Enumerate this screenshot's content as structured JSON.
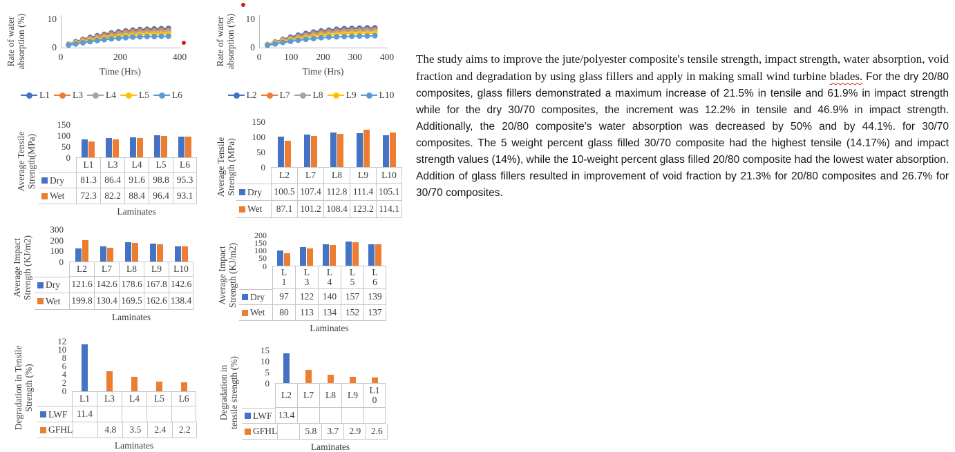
{
  "colors": {
    "blue": "#4472C4",
    "orange": "#ED7D31",
    "gray": "#A5A5A5",
    "yellow": "#FFC000",
    "light_blue": "#5B9BD5",
    "red_dot": "#C9231F",
    "table_border": "#C6C6C6",
    "chart_text": "#3B3B3B"
  },
  "stray_marks": [
    {
      "name": "red-dot-right-of-first-line-chart"
    },
    {
      "name": "red-dot-above-second-line-chart"
    }
  ],
  "paragraph": {
    "serif_lead": "The study aims to improve the jute/polyester composite's tensile strength, impact strength, water absorption, void fraction and degradation by using glass fillers and apply in making small wind turbine ",
    "misspelled_word": "blades.",
    "sans_rest": " For the dry 20/80 composites, glass fillers demonstrated a maximum increase of 21.5% in tensile and 61.9% in impact strength while for the dry 30/70 composites, the increment was 12.2% in tensile and 46.9% in impact strength. Additionally, the 20/80 composite’s water absorption was decreased by 50% and by 44.1%. for 30/70 composites. The 5 weight percent glass filled 30/70 composite had the highest tensile (14.17%) and impact strength values (14%), while the 10-weight percent glass filled 20/80 composite had the lowest water absorption. Addition of glass fillers resulted in improvement of void fraction by 21.3% for 20/80 composites and 26.7% for 30/70 composites."
  },
  "chart_data": [
    {
      "id": "water-absorption-L1-set",
      "type": "line",
      "ylabel": "Rate of water absorption (%)",
      "ylabel_display": "Rate of water\nabsorption (%)",
      "xlabel": "Time (Hrs)",
      "ylim": [
        0,
        10
      ],
      "yticks": [
        0,
        10
      ],
      "xlim": [
        0,
        400
      ],
      "xticks": [
        0,
        200,
        400
      ],
      "legend_position": "bottom",
      "x": [
        24,
        48,
        72,
        96,
        120,
        144,
        168,
        192,
        216,
        240,
        264,
        288,
        312,
        336,
        360
      ],
      "series": [
        {
          "name": "L1",
          "color": "#4472C4",
          "values": [
            1.2,
            2.1,
            2.9,
            3.6,
            4.2,
            4.7,
            5.2,
            5.6,
            5.9,
            6.2,
            6.4,
            6.5,
            6.6,
            6.7,
            6.8
          ]
        },
        {
          "name": "L3",
          "color": "#ED7D31",
          "values": [
            1.1,
            1.9,
            2.7,
            3.3,
            3.9,
            4.4,
            4.8,
            5.2,
            5.5,
            5.7,
            5.9,
            6.0,
            6.1,
            6.2,
            6.2
          ]
        },
        {
          "name": "L4",
          "color": "#A5A5A5",
          "values": [
            1.1,
            1.8,
            2.4,
            3.0,
            3.5,
            3.9,
            4.3,
            4.6,
            4.9,
            5.1,
            5.3,
            5.4,
            5.5,
            5.5,
            5.6
          ]
        },
        {
          "name": "L5",
          "color": "#FFC000",
          "values": [
            1.0,
            1.6,
            2.1,
            2.6,
            3.0,
            3.4,
            3.7,
            4.0,
            4.2,
            4.4,
            4.6,
            4.7,
            4.8,
            4.8,
            4.9
          ]
        },
        {
          "name": "L6",
          "color": "#5B9BD5",
          "values": [
            0.9,
            1.3,
            1.7,
            2.1,
            2.5,
            2.8,
            3.1,
            3.3,
            3.5,
            3.7,
            3.8,
            3.9,
            3.9,
            4.0,
            4.0
          ]
        }
      ]
    },
    {
      "id": "water-absorption-L2-set",
      "type": "line",
      "ylabel": "Rate of water absorption (%)",
      "ylabel_display": "Rate of water\nabsorption (%)",
      "xlabel": "Time (Hrs)",
      "ylim": [
        0,
        10
      ],
      "yticks": [
        0,
        10
      ],
      "xlim": [
        0,
        400
      ],
      "xticks": [
        0,
        100,
        200,
        300,
        400
      ],
      "legend_position": "bottom",
      "x": [
        24,
        48,
        72,
        96,
        120,
        144,
        168,
        192,
        216,
        240,
        264,
        288,
        312,
        336,
        360
      ],
      "series": [
        {
          "name": "L2",
          "color": "#4472C4",
          "values": [
            1.1,
            2.0,
            2.9,
            3.7,
            4.4,
            5.0,
            5.5,
            5.9,
            6.2,
            6.5,
            6.7,
            6.8,
            6.9,
            7.0,
            7.0
          ]
        },
        {
          "name": "L7",
          "color": "#ED7D31",
          "values": [
            1.0,
            1.9,
            2.7,
            3.4,
            4.0,
            4.5,
            5.0,
            5.4,
            5.7,
            5.9,
            6.1,
            6.2,
            6.3,
            6.4,
            6.4
          ]
        },
        {
          "name": "L8",
          "color": "#A5A5A5",
          "values": [
            1.0,
            1.8,
            2.5,
            3.1,
            3.7,
            4.2,
            4.6,
            4.9,
            5.2,
            5.4,
            5.6,
            5.7,
            5.8,
            5.9,
            5.9
          ]
        },
        {
          "name": "L9",
          "color": "#FFC000",
          "values": [
            1.0,
            1.6,
            2.2,
            2.7,
            3.2,
            3.6,
            4.0,
            4.3,
            4.5,
            4.7,
            4.9,
            5.0,
            5.1,
            5.1,
            5.2
          ]
        },
        {
          "name": "L10",
          "color": "#5B9BD5",
          "values": [
            0.8,
            1.3,
            1.8,
            2.2,
            2.6,
            2.9,
            3.2,
            3.5,
            3.7,
            3.8,
            3.9,
            4.0,
            4.1,
            4.1,
            4.2
          ]
        }
      ]
    },
    {
      "id": "avg-tensile-L1-set",
      "type": "bar",
      "ylabel": "Average Tensile Strength(MPa)",
      "ylabel_display": "Average Tensile\nStrength(MPa)",
      "xlabel": "Laminates",
      "ylim": [
        0,
        150
      ],
      "yticks": [
        0,
        50,
        100,
        150
      ],
      "categories": [
        "L1",
        "L3",
        "L4",
        "L5",
        "L6"
      ],
      "data_table": true,
      "legend_position": "table-left",
      "series": [
        {
          "name": "Dry",
          "color": "#4472C4",
          "values": [
            81.3,
            86.4,
            91.6,
            98.8,
            95.3
          ]
        },
        {
          "name": "Wet",
          "color": "#ED7D31",
          "values": [
            72.3,
            82.2,
            88.4,
            96.4,
            93.1
          ]
        }
      ]
    },
    {
      "id": "avg-tensile-L2-set",
      "type": "bar",
      "ylabel": "Average Tensile Strength (MPa)",
      "ylabel_display": "Average Tensile\nStrength (MPa)",
      "xlabel": "",
      "ylim": [
        0,
        150
      ],
      "yticks": [
        0,
        50,
        100,
        150
      ],
      "categories": [
        "L2",
        "L7",
        "L8",
        "L9",
        "L10"
      ],
      "data_table": true,
      "legend_position": "table-left",
      "series": [
        {
          "name": "Dry",
          "color": "#4472C4",
          "values": [
            100.5,
            107.4,
            112.8,
            111.4,
            105.1
          ]
        },
        {
          "name": "Wet",
          "color": "#ED7D31",
          "values": [
            87.1,
            101.2,
            108.4,
            123.2,
            114.1
          ]
        }
      ]
    },
    {
      "id": "avg-impact-L2-set",
      "type": "bar",
      "ylabel": "Average Impact Strength (KJ/m2)",
      "ylabel_display": "Average Impact\nStrength (KJ/m2)",
      "xlabel": "Laminates",
      "ylim": [
        0,
        300
      ],
      "yticks": [
        0,
        100,
        200,
        300
      ],
      "categories": [
        "L2",
        "L7",
        "L8",
        "L9",
        "L10"
      ],
      "data_table": true,
      "legend_position": "table-left",
      "series": [
        {
          "name": "Dry",
          "color": "#4472C4",
          "values": [
            121.6,
            142.6,
            178.6,
            167.8,
            142.6
          ]
        },
        {
          "name": "Wet",
          "color": "#ED7D31",
          "values": [
            199.8,
            130.4,
            169.5,
            162.6,
            138.4
          ]
        }
      ]
    },
    {
      "id": "avg-impact-L1-set",
      "type": "bar",
      "ylabel": "Average Impact Strength (KJ/m2)",
      "ylabel_display": "Average Impact\nStrength (KJ/m2)",
      "xlabel": "Laminates",
      "ylim": [
        0,
        200
      ],
      "yticks": [
        0,
        50,
        100,
        150,
        200
      ],
      "categories": [
        "L1",
        "L3",
        "L4",
        "L5",
        "L6"
      ],
      "categories_display": [
        "L\n1",
        "L\n3",
        "L\n4",
        "L\n5",
        "L\n6"
      ],
      "data_table": true,
      "legend_position": "table-left",
      "series": [
        {
          "name": "Dry",
          "color": "#4472C4",
          "values": [
            97,
            122,
            140,
            157,
            139
          ]
        },
        {
          "name": "Wet",
          "color": "#ED7D31",
          "values": [
            80,
            113,
            134,
            152,
            137
          ]
        }
      ]
    },
    {
      "id": "degradation-tensile-L1-set",
      "type": "bar",
      "ylabel": "Degradation in Tensile Strength (%)",
      "ylabel_display": "Degradation in Tensile\nStrength (%)",
      "xlabel": "Laminates",
      "ylim": [
        0,
        12
      ],
      "yticks": [
        0,
        2,
        4,
        6,
        8,
        10,
        12
      ],
      "categories": [
        "L1",
        "L3",
        "L4",
        "L5",
        "L6"
      ],
      "data_table": true,
      "legend_position": "table-left",
      "series": [
        {
          "name": "LWF",
          "color": "#4472C4",
          "values": [
            11.4,
            null,
            null,
            null,
            null
          ]
        },
        {
          "name": "GFHL",
          "color": "#ED7D31",
          "values": [
            null,
            4.8,
            3.5,
            2.4,
            2.2
          ]
        }
      ]
    },
    {
      "id": "degradation-tensile-L2-set",
      "type": "bar",
      "ylabel": "Degradation in tensile strength (%)",
      "ylabel_display": "Degradation in\ntensile strength (%)",
      "xlabel": "Laminates",
      "ylim": [
        0,
        15
      ],
      "yticks": [
        0,
        5,
        10,
        15
      ],
      "categories": [
        "L2",
        "L7",
        "L8",
        "L9",
        "L10"
      ],
      "categories_display": [
        "L2",
        "L7",
        "L8",
        "L9",
        "L1\n0"
      ],
      "data_table": true,
      "legend_position": "table-left",
      "series": [
        {
          "name": "LWF",
          "color": "#4472C4",
          "values": [
            13.4,
            null,
            null,
            null,
            null
          ]
        },
        {
          "name": "GFHL",
          "color": "#ED7D31",
          "values": [
            null,
            5.8,
            3.7,
            2.9,
            2.6
          ]
        }
      ]
    }
  ]
}
